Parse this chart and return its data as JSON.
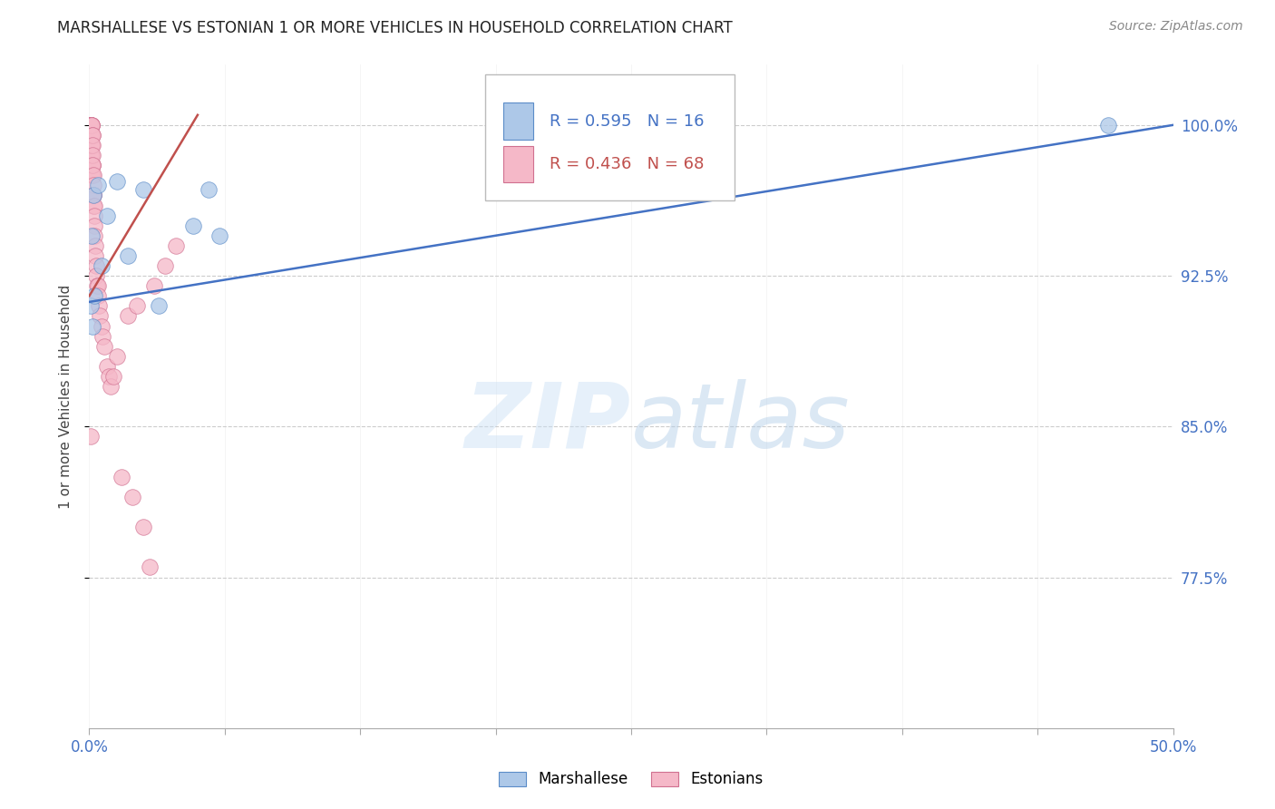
{
  "title": "MARSHALLESE VS ESTONIAN 1 OR MORE VEHICLES IN HOUSEHOLD CORRELATION CHART",
  "source": "Source: ZipAtlas.com",
  "ylabel": "1 or more Vehicles in Household",
  "xlim": [
    0.0,
    50.0
  ],
  "ylim": [
    70.0,
    103.0
  ],
  "ytick_vals": [
    77.5,
    85.0,
    92.5,
    100.0
  ],
  "ytick_labels": [
    "77.5%",
    "85.0%",
    "92.5%",
    "100.0%"
  ],
  "xtick_vals": [
    0.0,
    6.25,
    12.5,
    18.75,
    25.0,
    31.25,
    37.5,
    43.75,
    50.0
  ],
  "xtick_labels": [
    "0.0%",
    "",
    "",
    "",
    "",
    "",
    "",
    "",
    "50.0%"
  ],
  "marshallese": {
    "R": 0.595,
    "N": 16,
    "color": "#adc8e8",
    "edge_color": "#5b8cc8",
    "line_color": "#4472c4",
    "x": [
      0.05,
      0.1,
      0.15,
      0.18,
      0.25,
      0.4,
      0.55,
      0.8,
      1.3,
      1.8,
      2.5,
      3.2,
      4.8,
      5.5,
      6.0,
      47.0
    ],
    "y": [
      91.0,
      94.5,
      90.0,
      96.5,
      91.5,
      97.0,
      93.0,
      95.5,
      97.2,
      93.5,
      96.8,
      91.0,
      95.0,
      96.8,
      94.5,
      100.0
    ],
    "trend_x": [
      0.0,
      50.0
    ],
    "trend_y": [
      91.2,
      100.0
    ]
  },
  "estonians": {
    "R": 0.436,
    "N": 68,
    "color": "#f5b8c8",
    "edge_color": "#d07090",
    "line_color": "#c0504d",
    "x": [
      0.03,
      0.04,
      0.05,
      0.05,
      0.05,
      0.06,
      0.06,
      0.06,
      0.07,
      0.07,
      0.08,
      0.08,
      0.08,
      0.09,
      0.09,
      0.1,
      0.1,
      0.1,
      0.1,
      0.11,
      0.11,
      0.12,
      0.12,
      0.12,
      0.13,
      0.13,
      0.14,
      0.14,
      0.15,
      0.15,
      0.16,
      0.17,
      0.18,
      0.18,
      0.2,
      0.2,
      0.21,
      0.22,
      0.22,
      0.24,
      0.25,
      0.26,
      0.28,
      0.3,
      0.32,
      0.35,
      0.38,
      0.4,
      0.45,
      0.5,
      0.55,
      0.6,
      0.7,
      0.8,
      0.9,
      1.0,
      1.1,
      1.3,
      1.5,
      1.8,
      2.0,
      2.2,
      2.5,
      2.8,
      3.0,
      3.5,
      4.0,
      0.05
    ],
    "y": [
      100.0,
      100.0,
      100.0,
      99.5,
      98.5,
      100.0,
      99.5,
      98.5,
      100.0,
      99.5,
      100.0,
      99.5,
      98.5,
      100.0,
      99.0,
      100.0,
      99.5,
      98.5,
      97.5,
      100.0,
      99.0,
      100.0,
      99.0,
      98.0,
      99.5,
      98.0,
      99.5,
      98.0,
      99.0,
      97.5,
      98.5,
      98.0,
      97.5,
      96.5,
      97.0,
      96.0,
      96.5,
      96.0,
      95.5,
      95.0,
      94.5,
      94.0,
      93.5,
      93.0,
      92.5,
      92.0,
      92.0,
      91.5,
      91.0,
      90.5,
      90.0,
      89.5,
      89.0,
      88.0,
      87.5,
      87.0,
      87.5,
      88.5,
      82.5,
      90.5,
      81.5,
      91.0,
      80.0,
      78.0,
      92.0,
      93.0,
      94.0,
      84.5
    ],
    "trend_x": [
      0.0,
      5.0
    ],
    "trend_y": [
      91.5,
      100.5
    ]
  },
  "watermark_zip_color": "#c8dff5",
  "watermark_atlas_color": "#b0cce8",
  "watermark_alpha": 0.45,
  "legend_R_N_color": "#4472c4",
  "legend_est_color": "#c0504d",
  "title_fontsize": 12,
  "source_fontsize": 10,
  "tick_fontsize": 12,
  "ylabel_fontsize": 11,
  "grid_color": "#cccccc",
  "axis_color": "#aaaaaa",
  "background": "#ffffff"
}
